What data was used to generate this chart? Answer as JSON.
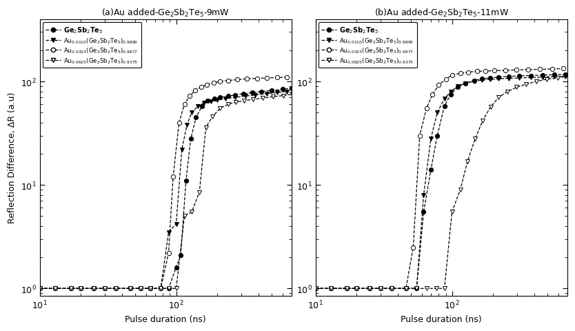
{
  "title_a": "(a)Au added-Ge$_2$Sb$_2$Te$_5$-9mW",
  "title_b": "(b)Au added-Ge$_2$Sb$_2$Te$_5$-11mW",
  "xlabel": "Pulse duration (ns)",
  "ylabel": "Reflection Difference, ΔR (a.u)",
  "legend_labels": [
    "Ge$_2$Sb$_2$Te$_5$",
    "Au$_{0.0110}$(Ge$_2$Sb$_2$Te$_5$)$_{0.9890}$",
    "Au$_{0.0323}$(Ge$_2$Sb$_2$Te$_5$)$_{0.9677}$",
    "Au$_{0.0625}$(Ge$_2$Sb$_2$Te$_5$)$_{0.9375}$"
  ],
  "panel_a": {
    "s0_x": [
      10,
      13,
      17,
      20,
      25,
      30,
      36,
      46,
      55,
      65,
      77,
      88,
      100,
      108,
      118,
      128,
      140,
      155,
      170,
      190,
      210,
      240,
      270,
      310,
      360,
      420,
      500,
      600,
      700
    ],
    "s0_y": [
      1.0,
      1.0,
      1.0,
      1.0,
      1.0,
      1.0,
      1.0,
      1.0,
      1.0,
      1.0,
      1.0,
      1.0,
      1.6,
      2.1,
      11,
      28,
      45,
      58,
      65,
      68,
      70,
      72,
      74,
      76,
      78,
      80,
      82,
      84,
      86
    ],
    "s1_x": [
      10,
      13,
      17,
      20,
      25,
      30,
      36,
      46,
      55,
      65,
      77,
      88,
      100,
      110,
      120,
      130,
      145,
      160,
      180,
      200,
      230,
      270,
      320,
      380,
      460,
      550,
      650
    ],
    "s1_y": [
      1.0,
      1.0,
      1.0,
      1.0,
      1.0,
      1.0,
      1.0,
      1.0,
      1.0,
      1.0,
      1.0,
      3.5,
      4.2,
      22,
      38,
      50,
      58,
      62,
      64,
      66,
      68,
      70,
      72,
      74,
      76,
      78,
      80
    ],
    "s2_x": [
      10,
      13,
      17,
      20,
      25,
      30,
      36,
      46,
      55,
      65,
      77,
      88,
      95,
      105,
      115,
      125,
      138,
      152,
      168,
      188,
      210,
      240,
      280,
      330,
      390,
      460,
      550,
      650
    ],
    "s2_y": [
      1.0,
      1.0,
      1.0,
      1.0,
      1.0,
      1.0,
      1.0,
      1.0,
      1.0,
      1.0,
      1.0,
      2.2,
      12,
      40,
      60,
      72,
      82,
      88,
      93,
      97,
      100,
      102,
      104,
      106,
      107,
      108,
      109,
      110
    ],
    "s3_x": [
      10,
      13,
      17,
      20,
      25,
      30,
      36,
      46,
      55,
      65,
      77,
      88,
      100,
      115,
      130,
      148,
      165,
      185,
      210,
      240,
      275,
      315,
      365,
      430,
      510,
      610,
      710
    ],
    "s3_y": [
      1.0,
      1.0,
      1.0,
      1.0,
      1.0,
      1.0,
      1.0,
      1.0,
      1.0,
      1.0,
      1.0,
      1.0,
      1.0,
      5.0,
      5.5,
      8.5,
      36,
      46,
      55,
      60,
      63,
      65,
      67,
      69,
      71,
      73,
      75
    ]
  },
  "panel_b": {
    "s0_x": [
      10,
      13,
      17,
      20,
      25,
      30,
      36,
      46,
      55,
      62,
      70,
      78,
      88,
      98,
      110,
      125,
      145,
      165,
      190,
      220,
      260,
      310,
      380,
      460,
      560,
      680
    ],
    "s0_y": [
      1.0,
      1.0,
      1.0,
      1.0,
      1.0,
      1.0,
      1.0,
      1.0,
      1.0,
      5.5,
      14,
      30,
      58,
      75,
      88,
      96,
      102,
      106,
      108,
      110,
      112,
      113,
      114,
      115,
      116,
      117
    ],
    "s1_x": [
      10,
      13,
      17,
      20,
      25,
      30,
      36,
      46,
      55,
      62,
      70,
      78,
      88,
      98,
      110,
      125,
      145,
      165,
      190,
      220,
      260,
      310,
      380,
      460,
      560,
      680
    ],
    "s1_y": [
      1.0,
      1.0,
      1.0,
      1.0,
      1.0,
      1.0,
      1.0,
      1.0,
      1.0,
      8,
      28,
      50,
      68,
      80,
      90,
      96,
      100,
      103,
      105,
      106,
      107,
      108,
      109,
      110,
      111,
      112
    ],
    "s2_x": [
      10,
      13,
      17,
      20,
      25,
      30,
      36,
      46,
      52,
      58,
      65,
      72,
      80,
      90,
      100,
      115,
      132,
      152,
      175,
      205,
      245,
      295,
      360,
      440,
      540,
      650
    ],
    "s2_y": [
      1.0,
      1.0,
      1.0,
      1.0,
      1.0,
      1.0,
      1.0,
      1.0,
      2.5,
      30,
      55,
      75,
      92,
      105,
      115,
      120,
      123,
      125,
      126,
      127,
      128,
      129,
      130,
      131,
      132,
      133
    ],
    "s3_x": [
      10,
      13,
      17,
      20,
      25,
      30,
      36,
      46,
      55,
      65,
      77,
      88,
      100,
      115,
      130,
      148,
      168,
      192,
      220,
      255,
      298,
      350,
      415,
      495,
      595,
      715
    ],
    "s3_y": [
      1.0,
      1.0,
      1.0,
      1.0,
      1.0,
      1.0,
      1.0,
      1.0,
      1.0,
      1.0,
      1.0,
      1.0,
      5.5,
      9,
      17,
      28,
      42,
      57,
      70,
      80,
      88,
      94,
      100,
      105,
      108,
      112
    ]
  }
}
